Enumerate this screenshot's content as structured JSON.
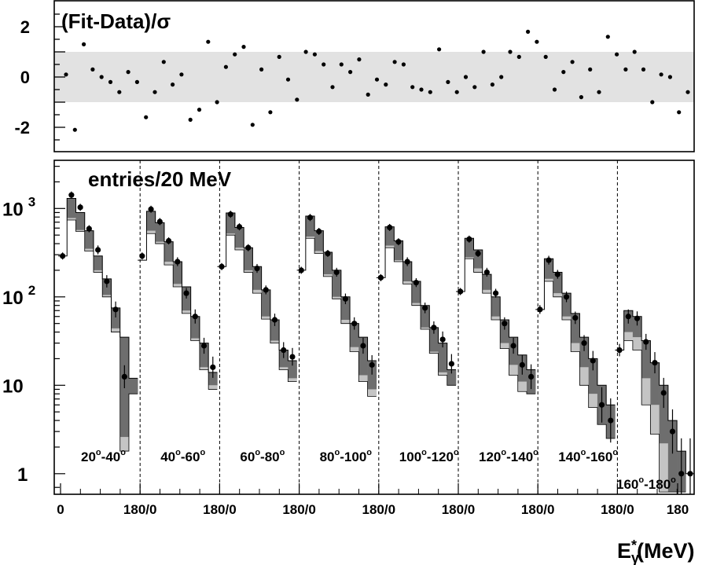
{
  "chart_data": [
    {
      "type": "scatter",
      "panel": "residuals",
      "title": "(Fit-Data)/σ",
      "ylim": [
        -3,
        3
      ],
      "yticks": [
        "2",
        "0",
        "-2"
      ],
      "ytick_values": [
        2,
        0,
        -2
      ],
      "band": [
        -1,
        1
      ],
      "band_color": "#e2e2e2",
      "values": [
        0.1,
        -2.1,
        1.3,
        0.3,
        0.0,
        -0.2,
        -0.6,
        0.2,
        -0.2,
        -1.6,
        -0.6,
        0.6,
        -0.3,
        0.1,
        -1.7,
        -1.3,
        1.4,
        -1.0,
        0.4,
        0.9,
        1.2,
        -1.9,
        0.3,
        -1.4,
        0.8,
        -0.1,
        -0.9,
        1.0,
        0.9,
        0.5,
        -0.4,
        0.5,
        0.2,
        0.7,
        -0.7,
        -0.1,
        -0.3,
        0.6,
        0.5,
        -0.4,
        -0.5,
        -0.6,
        1.1,
        -0.2,
        -0.6,
        0.0,
        -0.4,
        1.0,
        -0.3,
        0.0,
        1.0,
        0.8,
        1.8,
        1.4,
        0.8,
        -0.5,
        0.2,
        0.6,
        -0.8,
        0.3,
        -0.6,
        1.6,
        0.9,
        0.3,
        1.0,
        0.3,
        -1.0,
        0.1,
        0.0,
        -1.4,
        -0.6
      ]
    },
    {
      "type": "bar",
      "panel": "spectra",
      "title": "entries/20 MeV",
      "xlabel_main": "E",
      "xlabel_sub": "γ",
      "xlabel_sup": "*",
      "xlabel_unit": "(MeV)",
      "ylog": true,
      "ylim": [
        0.62,
        3500
      ],
      "yticks": [
        {
          "value": 1000,
          "base": "10",
          "exp": "3"
        },
        {
          "value": 100,
          "base": "10",
          "exp": "2"
        },
        {
          "value": 10,
          "base": "10",
          "exp": ""
        },
        {
          "value": 1,
          "base": "1",
          "exp": ""
        }
      ],
      "xticks": [
        "0",
        "180/0",
        "180/0",
        "180/0",
        "180/0",
        "180/0",
        "180/0",
        "180/0",
        "180"
      ],
      "colors": {
        "dark": "#6e6e6e",
        "light": "#c4c4c4",
        "line": "#000000",
        "point": "#000000"
      },
      "bins_per_window": 9,
      "windows": [
        {
          "label_lo": "20",
          "label_hi": "40",
          "data": [
            290,
            1420,
            1030,
            590,
            340,
            150,
            72,
            12.5,
            null
          ],
          "err": [
            0.04,
            0.04,
            0.04,
            0.04,
            0.05,
            0.07,
            0.09,
            0.13,
            null
          ],
          "fit_hi": [
            290,
            1300,
            900,
            560,
            290,
            160,
            75,
            35,
            12
          ],
          "mid": [
            null,
            780,
            570,
            350,
            200,
            105,
            44,
            2.6,
            8
          ],
          "fit_lo": [
            null,
            740,
            550,
            330,
            190,
            100,
            40,
            1.8,
            8
          ]
        },
        {
          "label_lo": "40",
          "label_hi": "60",
          "data": [
            290,
            980,
            710,
            430,
            250,
            110,
            60,
            28,
            16
          ],
          "err": [
            0.04,
            0.04,
            0.04,
            0.04,
            0.05,
            0.06,
            0.08,
            0.09,
            0.12
          ],
          "fit_hi": [
            260,
            930,
            690,
            420,
            250,
            130,
            60,
            30,
            14
          ],
          "mid": [
            null,
            560,
            420,
            250,
            140,
            70,
            34,
            16,
            10
          ],
          "fit_lo": [
            null,
            520,
            400,
            230,
            130,
            65,
            32,
            15,
            9
          ]
        },
        {
          "label_lo": "60",
          "label_hi": "80",
          "data": [
            220,
            860,
            620,
            360,
            210,
            120,
            55,
            25,
            21
          ],
          "err": [
            0.04,
            0.04,
            0.04,
            0.04,
            0.05,
            0.05,
            0.07,
            0.09,
            0.1
          ],
          "fit_hi": [
            220,
            890,
            610,
            360,
            220,
            120,
            55,
            25,
            19
          ],
          "mid": [
            null,
            520,
            360,
            200,
            120,
            60,
            32,
            16,
            12
          ],
          "fit_lo": [
            null,
            500,
            340,
            190,
            110,
            56,
            30,
            15,
            11
          ]
        },
        {
          "label_lo": "80",
          "label_hi": "100",
          "data": [
            200,
            790,
            550,
            310,
            190,
            95,
            50,
            28,
            17
          ],
          "err": [
            0.04,
            0.04,
            0.04,
            0.04,
            0.05,
            0.06,
            0.07,
            0.09,
            0.11
          ],
          "fit_hi": [
            200,
            820,
            560,
            320,
            200,
            100,
            50,
            35,
            19
          ],
          "mid": [
            null,
            480,
            330,
            180,
            100,
            55,
            27,
            13,
            9
          ],
          "fit_lo": [
            null,
            460,
            310,
            170,
            95,
            50,
            24,
            11,
            7.5
          ]
        },
        {
          "label_lo": "100",
          "label_hi": "120",
          "data": [
            165,
            610,
            420,
            250,
            145,
            75,
            45,
            33,
            17.5
          ],
          "err": [
            0.04,
            0.04,
            0.04,
            0.05,
            0.05,
            0.06,
            0.07,
            0.09,
            0.11
          ],
          "fit_hi": [
            165,
            620,
            430,
            250,
            150,
            80,
            45,
            30,
            15
          ],
          "mid": [
            null,
            380,
            260,
            150,
            85,
            45,
            24,
            14,
            10
          ],
          "fit_lo": [
            null,
            360,
            250,
            140,
            80,
            43,
            23,
            13,
            10
          ]
        },
        {
          "label_lo": "120",
          "label_hi": "140",
          "data": [
            115,
            450,
            310,
            190,
            110,
            50,
            28,
            17,
            12.5
          ],
          "err": [
            0.04,
            0.04,
            0.04,
            0.05,
            0.05,
            0.07,
            0.09,
            0.11,
            0.14
          ],
          "fit_hi": [
            115,
            460,
            340,
            180,
            100,
            55,
            35,
            22,
            15
          ],
          "mid": [
            null,
            280,
            210,
            120,
            60,
            30,
            17,
            11,
            8
          ],
          "fit_lo": [
            null,
            270,
            190,
            110,
            55,
            26,
            13,
            8.5,
            8
          ]
        },
        {
          "label_lo": "140",
          "label_hi": "160",
          "data": [
            72,
            260,
            180,
            100,
            58,
            30,
            19,
            6,
            4
          ],
          "err": [
            0.05,
            0.05,
            0.05,
            0.06,
            0.07,
            0.09,
            0.11,
            0.2,
            0.25
          ],
          "fit_hi": [
            72,
            270,
            190,
            110,
            65,
            35,
            20,
            10,
            6
          ],
          "mid": [
            null,
            160,
            110,
            60,
            30,
            16,
            8,
            3.6,
            2.5
          ],
          "fit_lo": [
            null,
            150,
            100,
            55,
            24,
            10,
            5.6,
            3.6,
            2.5
          ]
        },
        {
          "label_lo": "160",
          "label_hi": "180",
          "data": [
            25,
            60,
            57,
            31,
            18,
            8.2,
            3.0,
            1.0,
            1.0
          ],
          "err": [
            0.07,
            0.08,
            0.08,
            0.09,
            0.12,
            0.17,
            0.25,
            0.4,
            0.4
          ],
          "fit_hi": [
            25,
            70,
            60,
            32,
            18,
            10,
            4,
            1.8,
            1.0
          ],
          "mid": [
            null,
            40,
            35,
            12,
            6,
            2.2,
            0.62,
            0.62,
            null
          ],
          "fit_lo": [
            null,
            32,
            25,
            6,
            2.8,
            0.62,
            0.62,
            0.62,
            null
          ]
        }
      ]
    }
  ]
}
